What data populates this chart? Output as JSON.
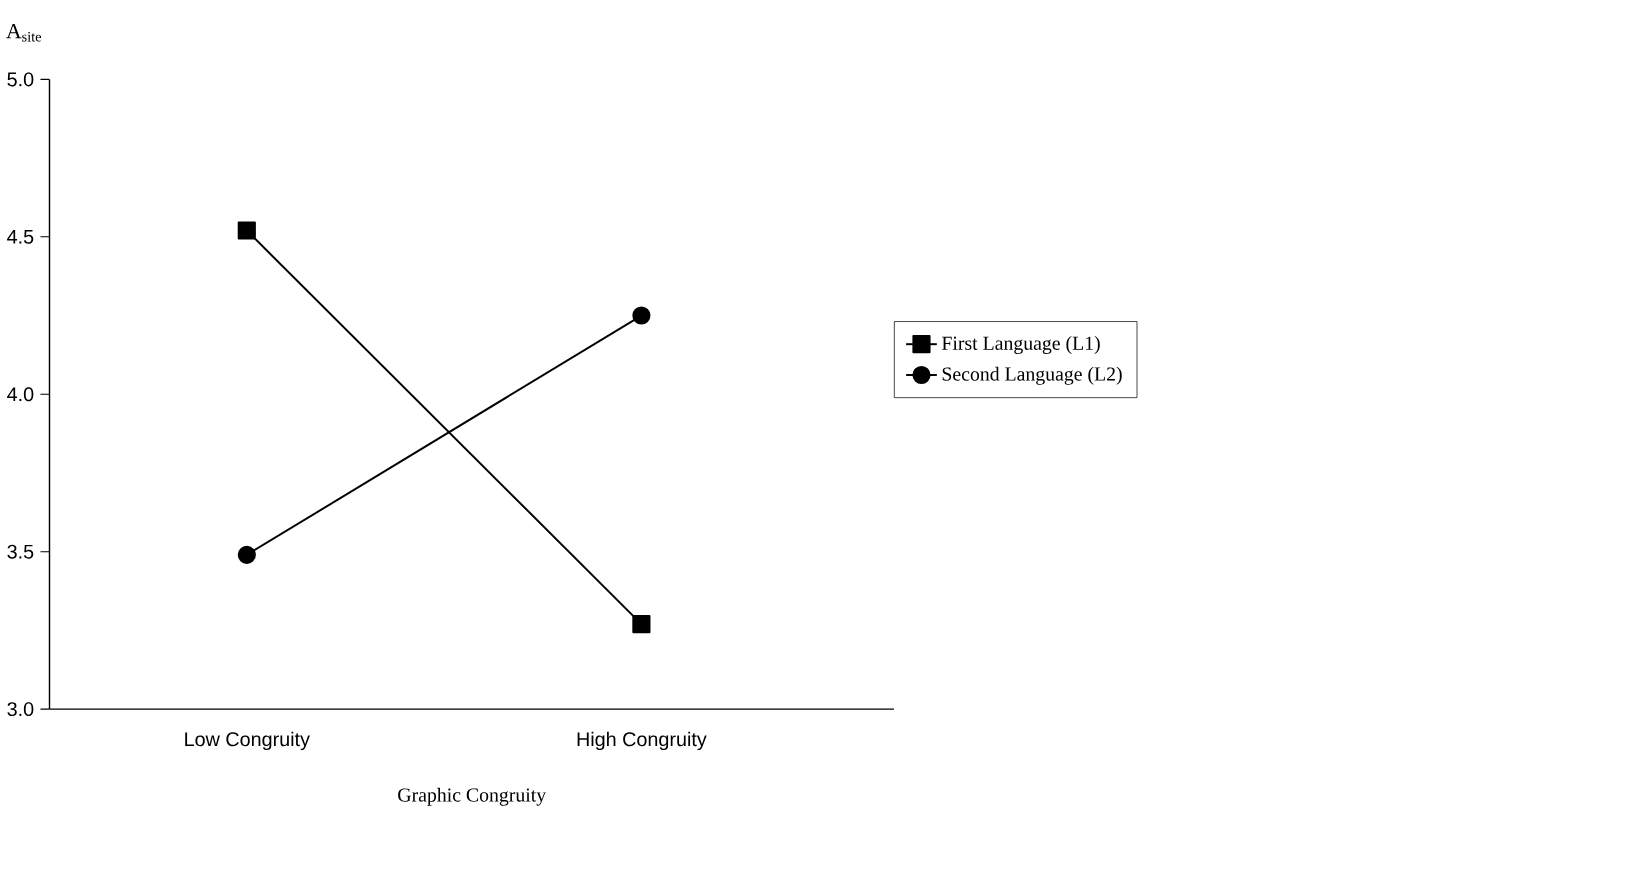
{
  "chart_data": {
    "type": "line",
    "xlabel": "Graphic Congruity",
    "ylabel": "A$_{site}$",
    "categories": [
      "Low Congruity",
      "High Congruity"
    ],
    "series": [
      {
        "name": "First Language (L1)",
        "color": "#000000",
        "marker": "square",
        "values": [
          4.52,
          3.27
        ]
      },
      {
        "name": "Second Language (L2)",
        "color": "#000000",
        "marker": "circle",
        "values": [
          3.49,
          4.25
        ]
      }
    ],
    "ylim": [
      3,
      5
    ],
    "yticks": [
      {
        "value": 3,
        "label": "3.0"
      },
      {
        "value": 3.5,
        "label": "3.5"
      },
      {
        "value": 4,
        "label": "4.0"
      },
      {
        "value": 4.5,
        "label": "4.5"
      },
      {
        "value": 5,
        "label": "5.0"
      }
    ],
    "grid": false,
    "legend": "right",
    "line_style": "solid"
  }
}
